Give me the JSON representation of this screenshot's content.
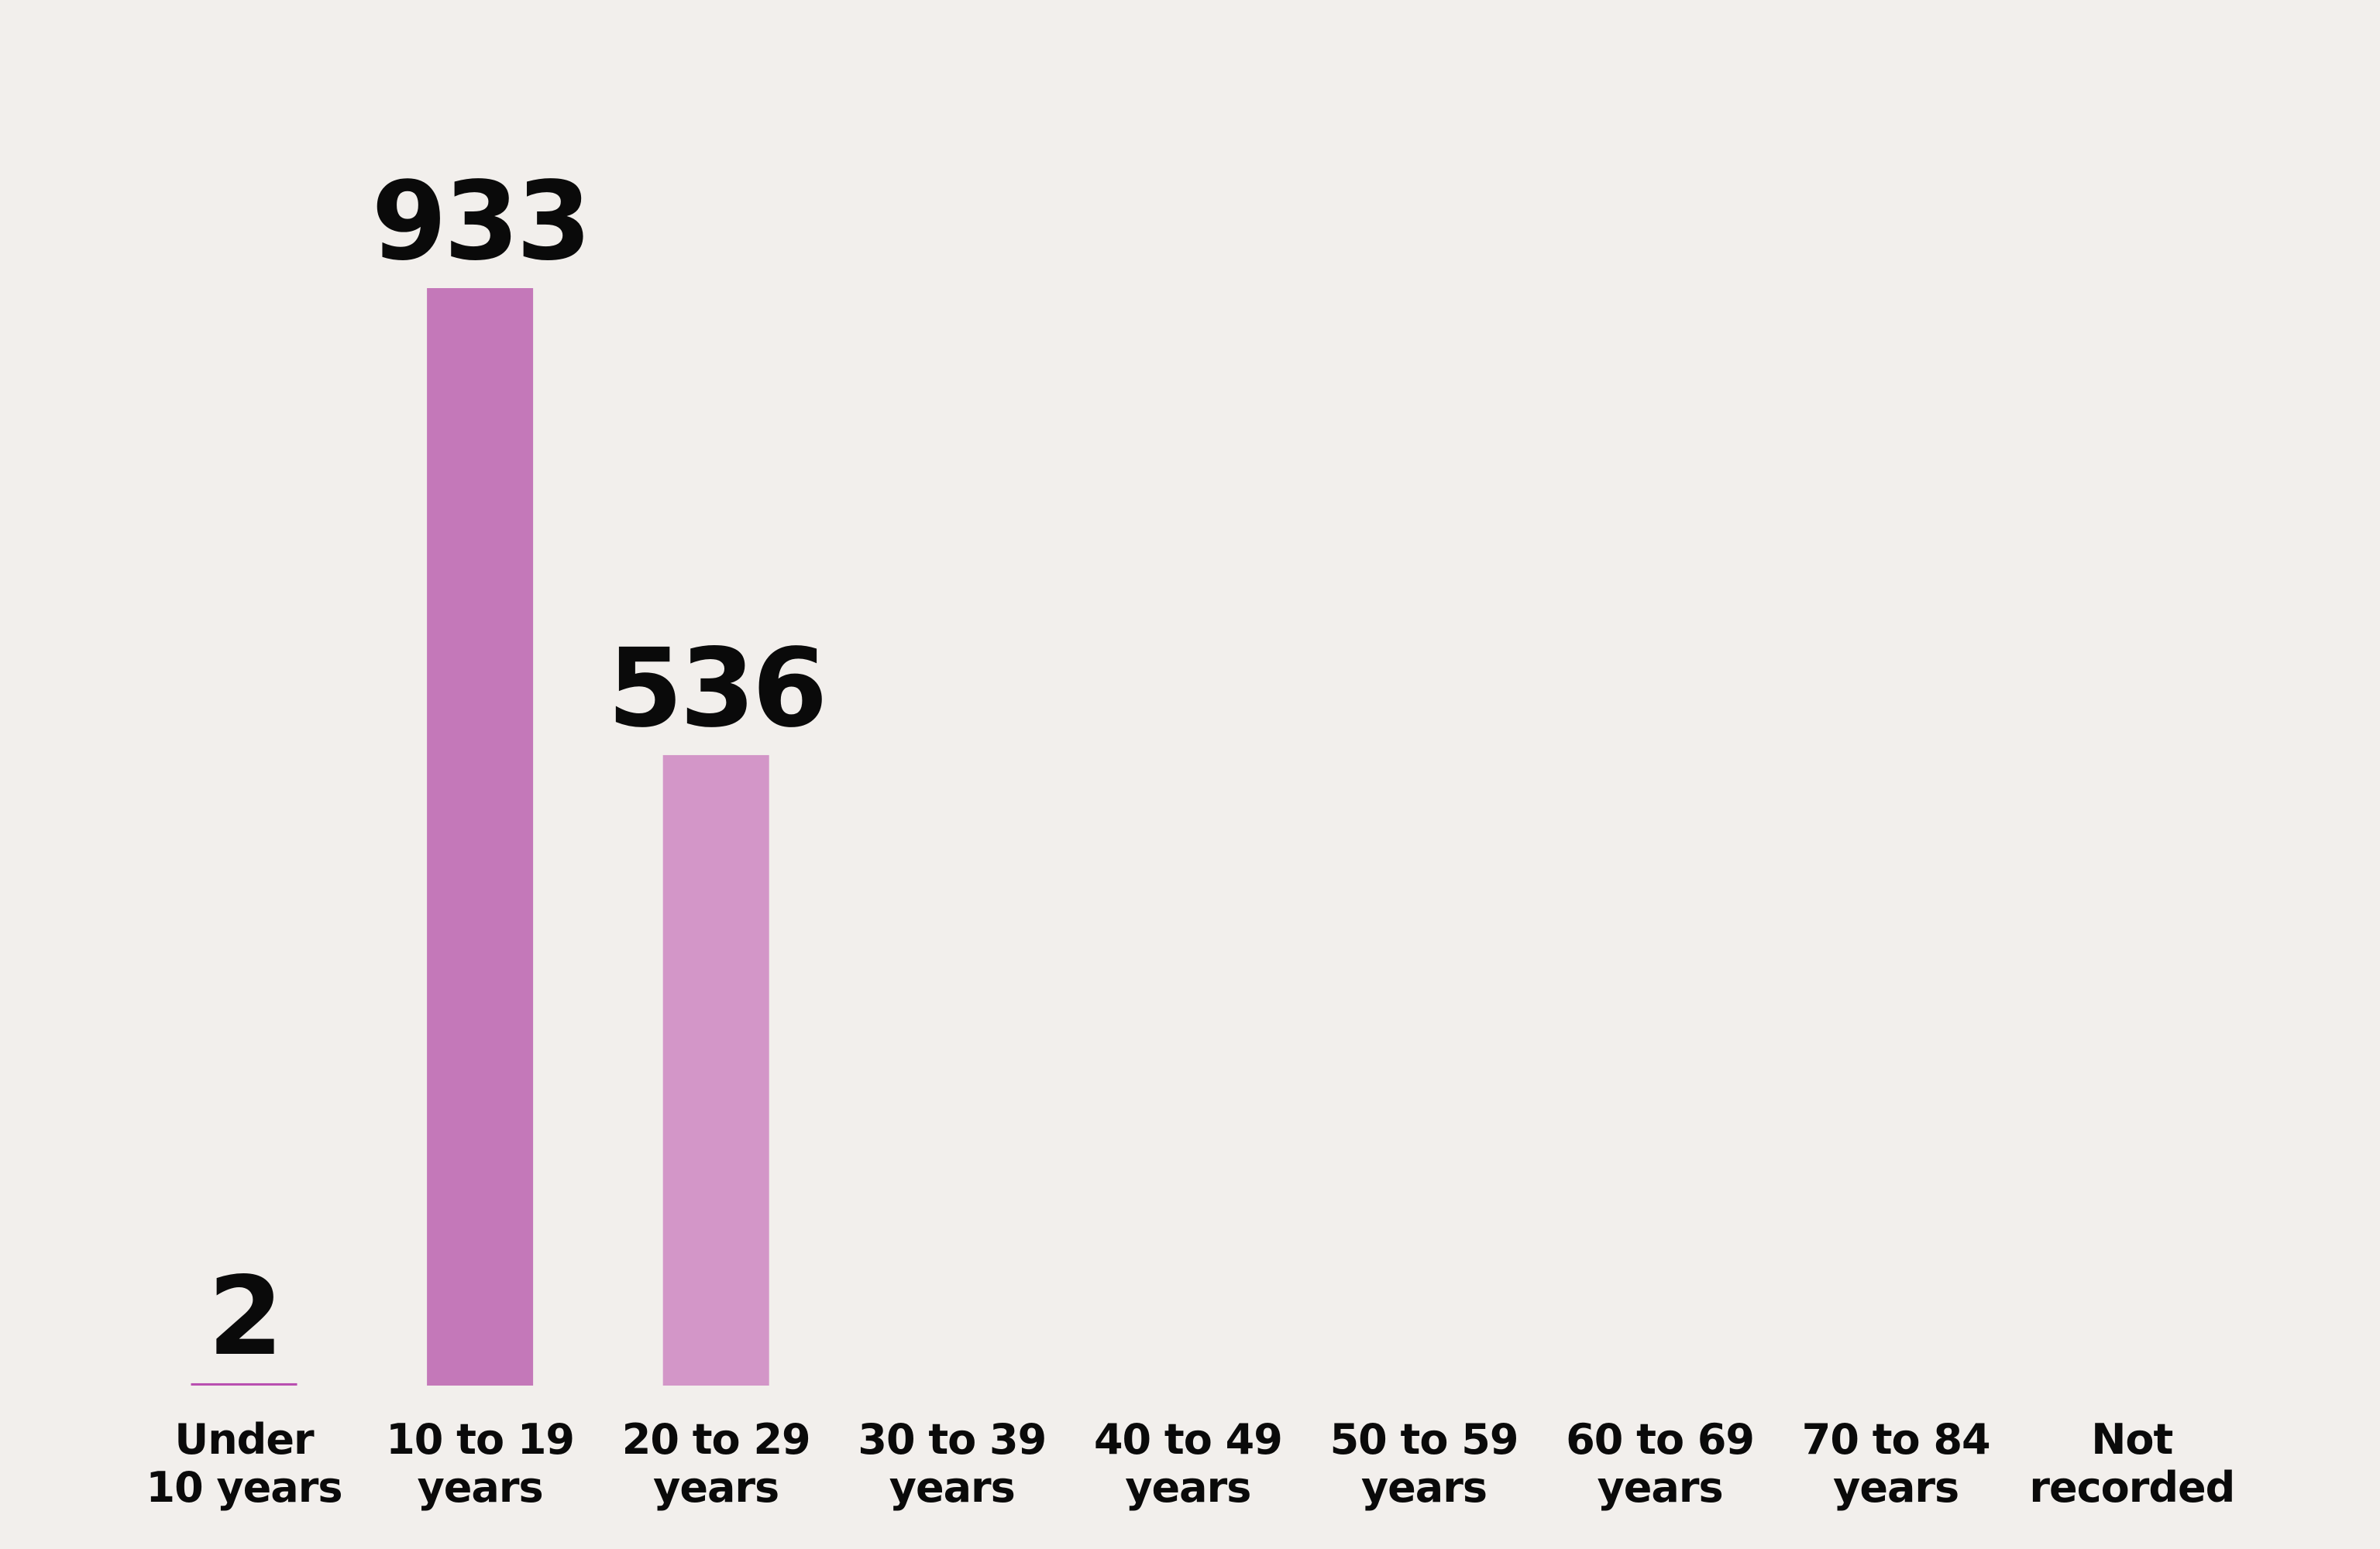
{
  "chart_data": {
    "type": "bar",
    "categories": [
      "Under\n10 years",
      "10 to 19\nyears",
      "20 to 29\nyears",
      "30 to 39\nyears",
      "40 to 49\nyears",
      "50 to 59\nyears",
      "60 to 69\nyears",
      "70 to 84\nyears",
      "Not\nrecorded"
    ],
    "values": [
      2,
      933,
      536,
      null,
      null,
      null,
      null,
      null,
      null
    ],
    "colors": [
      "#b94fb0",
      "#c478b9",
      "#d396c8"
    ]
  }
}
